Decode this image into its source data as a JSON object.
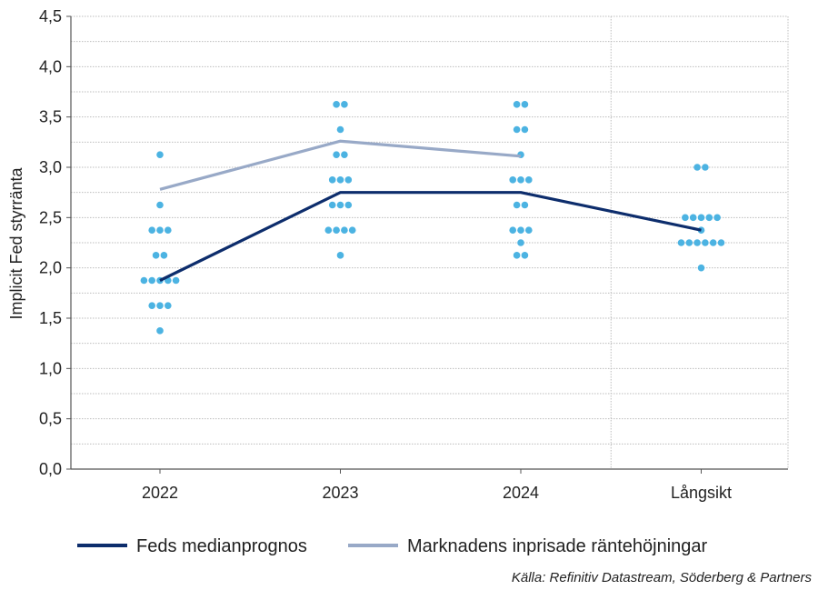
{
  "chart_data": {
    "type": "scatter",
    "ylabel": "Implicit Fed styrränta",
    "ylim": [
      0,
      4.5
    ],
    "yticks": [
      "0,0",
      "0,5",
      "1,0",
      "1,5",
      "2,0",
      "2,5",
      "3,0",
      "3,5",
      "4,0",
      "4,5"
    ],
    "grid": true,
    "categories": [
      "2022",
      "2023",
      "2024",
      "Långsikt"
    ],
    "dots": [
      {
        "category": "2022",
        "y": 3.125,
        "count": 1
      },
      {
        "category": "2022",
        "y": 2.625,
        "count": 1
      },
      {
        "category": "2022",
        "y": 2.375,
        "count": 3
      },
      {
        "category": "2022",
        "y": 2.125,
        "count": 2
      },
      {
        "category": "2022",
        "y": 1.875,
        "count": 5
      },
      {
        "category": "2022",
        "y": 1.625,
        "count": 3
      },
      {
        "category": "2022",
        "y": 1.375,
        "count": 1
      },
      {
        "category": "2023",
        "y": 3.625,
        "count": 2
      },
      {
        "category": "2023",
        "y": 3.375,
        "count": 1
      },
      {
        "category": "2023",
        "y": 3.125,
        "count": 2
      },
      {
        "category": "2023",
        "y": 2.875,
        "count": 3
      },
      {
        "category": "2023",
        "y": 2.625,
        "count": 3
      },
      {
        "category": "2023",
        "y": 2.375,
        "count": 4
      },
      {
        "category": "2023",
        "y": 2.125,
        "count": 1
      },
      {
        "category": "2024",
        "y": 3.625,
        "count": 2
      },
      {
        "category": "2024",
        "y": 3.375,
        "count": 2
      },
      {
        "category": "2024",
        "y": 3.125,
        "count": 1
      },
      {
        "category": "2024",
        "y": 2.875,
        "count": 3
      },
      {
        "category": "2024",
        "y": 2.625,
        "count": 2
      },
      {
        "category": "2024",
        "y": 2.375,
        "count": 3
      },
      {
        "category": "2024",
        "y": 2.25,
        "count": 1
      },
      {
        "category": "2024",
        "y": 2.125,
        "count": 2
      },
      {
        "category": "Långsikt",
        "y": 3.0,
        "count": 2
      },
      {
        "category": "Långsikt",
        "y": 2.5,
        "count": 5
      },
      {
        "category": "Långsikt",
        "y": 2.375,
        "count": 1
      },
      {
        "category": "Långsikt",
        "y": 2.25,
        "count": 6
      },
      {
        "category": "Långsikt",
        "y": 2.0,
        "count": 1
      }
    ],
    "series": [
      {
        "name": "Feds medianprognos",
        "color": "#0d2d6c",
        "categories": [
          "2022",
          "2023",
          "2024",
          "Långsikt"
        ],
        "values": [
          1.875,
          2.75,
          2.75,
          2.375
        ]
      },
      {
        "name": "Marknadens inprisade räntehöjningar",
        "color": "#98a9c7",
        "categories": [
          "2022",
          "2023",
          "2024"
        ],
        "values": [
          2.78,
          3.26,
          3.11
        ]
      }
    ],
    "dot_color": "#4cb3e2",
    "legend_position": "bottom-left"
  },
  "source": "Källa: Refinitiv Datastream, Söderberg & Partners"
}
